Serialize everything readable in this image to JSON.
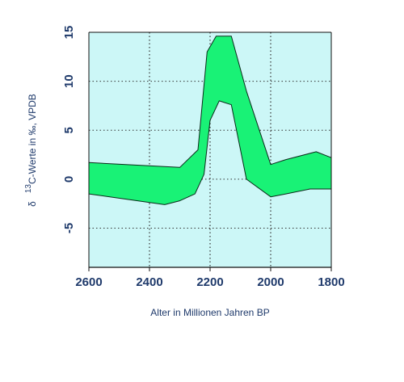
{
  "chart_data": {
    "type": "area",
    "title": "",
    "xlabel": "Alter in Millionen Jahren BP",
    "ylabel": {
      "prefix": "δ",
      "superscript": "13",
      "main": "C-Werte in ‰, VPDB"
    },
    "xlim": [
      2600,
      1800
    ],
    "ylim": [
      -9,
      15
    ],
    "x_ticks": [
      "2600",
      "2400",
      "2200",
      "2000",
      "1800"
    ],
    "y_ticks": [
      "15",
      "10",
      "5",
      "0",
      "-5"
    ],
    "grid": "dotted",
    "colors": {
      "plot_background": "#ccf7f7",
      "band_fill": "#19f276",
      "axis_text": "#1f3a6b",
      "grid": "#333333"
    },
    "series": [
      {
        "upper": {
          "x": [
            2600,
            2300,
            2240,
            2210,
            2180,
            2130,
            2080,
            2000,
            1950,
            1850,
            1800
          ],
          "y": [
            1.7,
            1.2,
            3.0,
            13.0,
            14.6,
            14.6,
            9.0,
            1.5,
            2.0,
            2.8,
            2.2
          ]
        },
        "lower": {
          "x": [
            2600,
            2350,
            2300,
            2250,
            2220,
            2200,
            2170,
            2130,
            2080,
            2000,
            1950,
            1870,
            1800
          ],
          "y": [
            -1.5,
            -2.6,
            -2.2,
            -1.5,
            0.5,
            6.0,
            8.0,
            7.6,
            0.0,
            -1.8,
            -1.5,
            -1.0,
            -1.0
          ]
        }
      }
    ]
  }
}
